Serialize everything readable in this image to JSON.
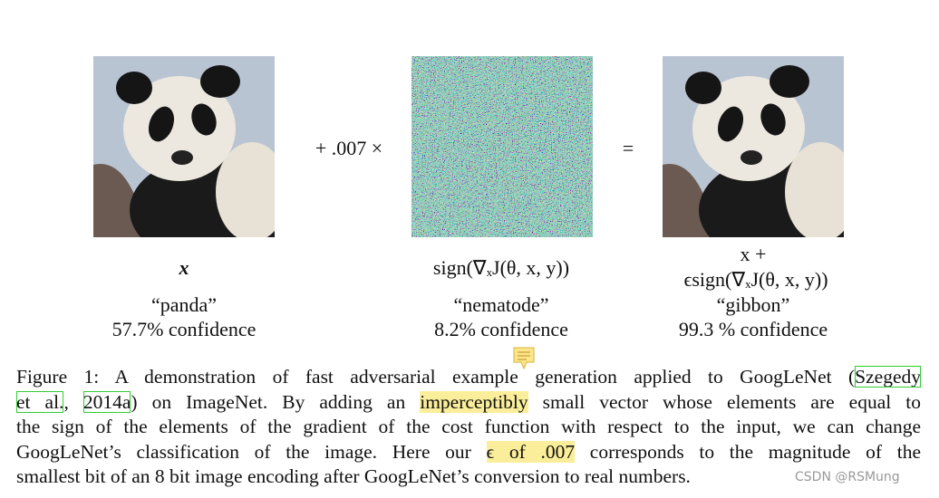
{
  "figure": {
    "columns": [
      {
        "math": [
          "x"
        ],
        "label": "“panda”",
        "confidence": "57.7% confidence"
      },
      {
        "math": [
          "sign(∇ₓJ(θ, x, y))"
        ],
        "label": "“nematode”",
        "confidence": "8.2% confidence"
      },
      {
        "math": [
          "x +",
          "ϵsign(∇ₓJ(θ, x, y))"
        ],
        "label": "“gibbon”",
        "confidence": "99.3 % confidence"
      }
    ],
    "operators": [
      "+ .007 ×",
      "="
    ]
  },
  "caption": {
    "lines": [
      [
        {
          "text": "Figure 1:  A demonstration of fast adversarial example generation applied to GoogLeNet ("
        },
        {
          "text": "Szegedy",
          "style": "link"
        }
      ],
      [
        {
          "text": "et al.",
          "style": "link"
        },
        {
          "text": ", "
        },
        {
          "text": "2014a",
          "style": "link"
        },
        {
          "text": ") on ImageNet. By adding an "
        },
        {
          "text": "imperceptibly",
          "style": "highlight"
        },
        {
          "text": " small vector whose elements are equal to"
        }
      ],
      [
        {
          "text": "the sign of the elements of the gradient of the cost function with respect to the input, we can change"
        }
      ],
      [
        {
          "text": "GoogLeNet’s classification of the image. Here our "
        },
        {
          "text": "ϵ of .007",
          "style": "highlight"
        },
        {
          "text": " corresponds to the magnitude of the"
        }
      ],
      [
        {
          "text": "smallest bit of an 8 bit image encoding after GoogLeNet’s conversion to real numbers."
        }
      ]
    ]
  },
  "watermark": "CSDN @RSMung"
}
